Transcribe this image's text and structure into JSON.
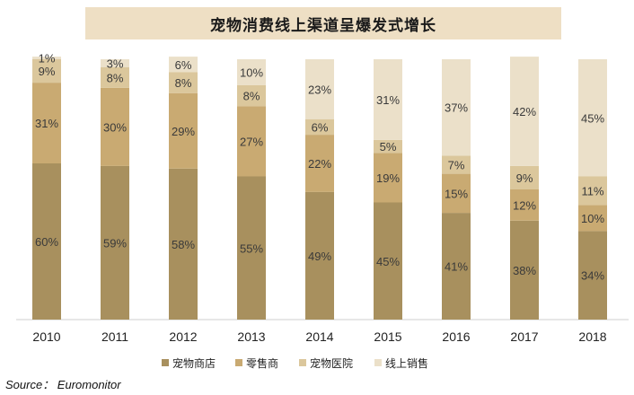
{
  "title": "宠物消费线上渠道呈爆发式增长",
  "source": "Source： Euromonitor",
  "chart_data": {
    "type": "bar",
    "stacked": true,
    "categories": [
      "2010",
      "2011",
      "2012",
      "2013",
      "2014",
      "2015",
      "2016",
      "2017",
      "2018"
    ],
    "series": [
      {
        "name": "宠物商店",
        "color": "#a8905e",
        "values": [
          60,
          59,
          58,
          55,
          49,
          45,
          41,
          38,
          34
        ]
      },
      {
        "name": "零售商",
        "color": "#c9aa72",
        "values": [
          31,
          30,
          29,
          27,
          22,
          19,
          15,
          12,
          10
        ]
      },
      {
        "name": "宠物医院",
        "color": "#dbc79c",
        "values": [
          9,
          8,
          8,
          8,
          6,
          5,
          7,
          9,
          11
        ]
      },
      {
        "name": "线上销售",
        "color": "#ebe0c9",
        "values": [
          1,
          3,
          6,
          10,
          23,
          31,
          37,
          42,
          45
        ]
      }
    ],
    "ylim": [
      0,
      100
    ],
    "legend": "bottom",
    "grid": false
  }
}
